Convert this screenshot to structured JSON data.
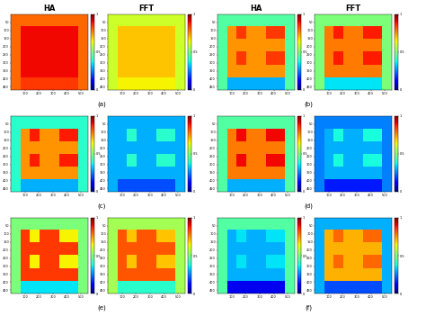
{
  "chart_data": [
    {
      "type": "heatmap",
      "title": "HA",
      "annotation": "(a)",
      "xlim": [
        0,
        550
      ],
      "ylim": [
        470,
        0
      ],
      "xticks": [
        100,
        200,
        300,
        400,
        500
      ],
      "yticks": [
        50,
        100,
        150,
        200,
        250,
        300,
        350,
        400,
        450
      ],
      "colorbar": {
        "range": [
          0,
          1
        ],
        "ticks": [
          0,
          0.5,
          1
        ]
      },
      "cells": [
        [
          0.8,
          0.8,
          0.8,
          0.8,
          0.8,
          0.8,
          0.8,
          0.8
        ],
        [
          0.8,
          0.9,
          0.9,
          0.9,
          0.9,
          0.9,
          0.9,
          0.8
        ],
        [
          0.8,
          0.9,
          0.9,
          0.9,
          0.9,
          0.9,
          0.9,
          0.8
        ],
        [
          0.8,
          0.9,
          0.9,
          0.9,
          0.9,
          0.9,
          0.9,
          0.8
        ],
        [
          0.8,
          0.9,
          0.9,
          0.9,
          0.9,
          0.9,
          0.9,
          0.8
        ],
        [
          0.8,
          0.85,
          0.85,
          0.85,
          0.85,
          0.85,
          0.85,
          0.8
        ]
      ]
    },
    {
      "type": "heatmap",
      "title": "FFT",
      "xlim": [
        0,
        550
      ],
      "ylim": [
        470,
        0
      ],
      "xticks": [
        100,
        200,
        300,
        400,
        500
      ],
      "yticks": [
        50,
        100,
        150,
        200,
        250,
        300,
        350,
        400,
        450
      ],
      "colorbar": {
        "range": [
          0,
          1
        ],
        "ticks": [
          0,
          0.5,
          1
        ]
      },
      "cells": [
        [
          0.6,
          0.6,
          0.6,
          0.6,
          0.6,
          0.6,
          0.6,
          0.6
        ],
        [
          0.6,
          0.7,
          0.7,
          0.7,
          0.7,
          0.7,
          0.7,
          0.6
        ],
        [
          0.6,
          0.7,
          0.7,
          0.7,
          0.7,
          0.7,
          0.7,
          0.6
        ],
        [
          0.6,
          0.7,
          0.7,
          0.7,
          0.7,
          0.7,
          0.7,
          0.6
        ],
        [
          0.6,
          0.7,
          0.7,
          0.7,
          0.7,
          0.7,
          0.7,
          0.6
        ],
        [
          0.6,
          0.65,
          0.65,
          0.65,
          0.65,
          0.65,
          0.65,
          0.6
        ]
      ]
    },
    {
      "type": "heatmap",
      "title": "HA",
      "annotation": "(b)",
      "xlim": [
        0,
        550
      ],
      "ylim": [
        470,
        0
      ],
      "xticks": [
        100,
        200,
        300,
        400,
        500
      ],
      "yticks": [
        50,
        100,
        150,
        200,
        250,
        300,
        350,
        400,
        450
      ],
      "colorbar": {
        "range": [
          0,
          1
        ],
        "ticks": [
          0,
          0.5,
          1
        ]
      },
      "cells": [
        [
          0.45,
          0.45,
          0.45,
          0.45,
          0.45,
          0.45,
          0.45,
          0.45
        ],
        [
          0.45,
          0.75,
          0.85,
          0.75,
          0.75,
          0.85,
          0.85,
          0.45
        ],
        [
          0.45,
          0.75,
          0.75,
          0.75,
          0.75,
          0.75,
          0.75,
          0.45
        ],
        [
          0.45,
          0.75,
          0.85,
          0.75,
          0.75,
          0.85,
          0.85,
          0.45
        ],
        [
          0.45,
          0.75,
          0.75,
          0.75,
          0.75,
          0.75,
          0.75,
          0.45
        ],
        [
          0.45,
          0.3,
          0.3,
          0.3,
          0.3,
          0.3,
          0.3,
          0.45
        ]
      ]
    },
    {
      "type": "heatmap",
      "title": "FFT",
      "xlim": [
        0,
        550
      ],
      "ylim": [
        470,
        0
      ],
      "xticks": [
        100,
        200,
        300,
        400,
        500
      ],
      "yticks": [
        50,
        100,
        150,
        200,
        250,
        300,
        350,
        400,
        450
      ],
      "colorbar": {
        "range": [
          0,
          1
        ],
        "ticks": [
          0,
          0.5,
          1
        ]
      },
      "cells": [
        [
          0.5,
          0.5,
          0.5,
          0.5,
          0.5,
          0.5,
          0.5,
          0.5
        ],
        [
          0.5,
          0.78,
          0.88,
          0.78,
          0.78,
          0.88,
          0.88,
          0.5
        ],
        [
          0.5,
          0.78,
          0.78,
          0.78,
          0.78,
          0.78,
          0.78,
          0.5
        ],
        [
          0.5,
          0.78,
          0.88,
          0.78,
          0.78,
          0.88,
          0.88,
          0.5
        ],
        [
          0.5,
          0.78,
          0.78,
          0.78,
          0.78,
          0.78,
          0.78,
          0.5
        ],
        [
          0.5,
          0.35,
          0.35,
          0.35,
          0.35,
          0.35,
          0.35,
          0.5
        ]
      ]
    },
    {
      "type": "heatmap",
      "annotation": "(c)",
      "xlim": [
        0,
        550
      ],
      "ylim": [
        470,
        0
      ],
      "xticks": [
        100,
        200,
        300,
        400,
        500
      ],
      "yticks": [
        50,
        100,
        150,
        200,
        250,
        300,
        350,
        400,
        450
      ],
      "colorbar": {
        "range": [
          0,
          1
        ],
        "ticks": [
          0,
          0.5,
          1
        ]
      },
      "cells": [
        [
          0.4,
          0.4,
          0.4,
          0.4,
          0.4,
          0.4,
          0.4,
          0.4
        ],
        [
          0.4,
          0.75,
          0.88,
          0.75,
          0.75,
          0.88,
          0.88,
          0.4
        ],
        [
          0.4,
          0.75,
          0.75,
          0.75,
          0.75,
          0.75,
          0.75,
          0.4
        ],
        [
          0.4,
          0.75,
          0.88,
          0.75,
          0.75,
          0.88,
          0.88,
          0.4
        ],
        [
          0.4,
          0.75,
          0.75,
          0.75,
          0.75,
          0.75,
          0.75,
          0.4
        ],
        [
          0.4,
          0.3,
          0.3,
          0.3,
          0.3,
          0.3,
          0.3,
          0.4
        ]
      ]
    },
    {
      "type": "heatmap",
      "xlim": [
        0,
        550
      ],
      "ylim": [
        470,
        0
      ],
      "xticks": [
        100,
        200,
        300,
        400,
        500
      ],
      "yticks": [
        50,
        100,
        150,
        200,
        250,
        300,
        350,
        400,
        450
      ],
      "colorbar": {
        "range": [
          0,
          1
        ],
        "ticks": [
          0,
          0.5,
          1
        ]
      },
      "cells": [
        [
          0.3,
          0.3,
          0.3,
          0.3,
          0.3,
          0.3,
          0.3,
          0.3
        ],
        [
          0.3,
          0.3,
          0.4,
          0.3,
          0.3,
          0.4,
          0.4,
          0.3
        ],
        [
          0.3,
          0.3,
          0.3,
          0.3,
          0.3,
          0.3,
          0.3,
          0.3
        ],
        [
          0.3,
          0.3,
          0.4,
          0.3,
          0.3,
          0.4,
          0.4,
          0.3
        ],
        [
          0.3,
          0.3,
          0.3,
          0.3,
          0.3,
          0.3,
          0.3,
          0.3
        ],
        [
          0.3,
          0.2,
          0.2,
          0.2,
          0.2,
          0.2,
          0.2,
          0.3
        ]
      ]
    },
    {
      "type": "heatmap",
      "annotation": "(d)",
      "xlim": [
        0,
        550
      ],
      "ylim": [
        470,
        0
      ],
      "xticks": [
        100,
        200,
        300,
        400,
        500
      ],
      "yticks": [
        50,
        100,
        150,
        200,
        250,
        300,
        350,
        400,
        450
      ],
      "colorbar": {
        "range": [
          0,
          1
        ],
        "ticks": [
          0,
          0.5,
          1
        ]
      },
      "cells": [
        [
          0.45,
          0.45,
          0.45,
          0.45,
          0.45,
          0.45,
          0.45,
          0.45
        ],
        [
          0.45,
          0.78,
          0.9,
          0.78,
          0.78,
          0.9,
          0.9,
          0.45
        ],
        [
          0.45,
          0.78,
          0.78,
          0.78,
          0.78,
          0.78,
          0.78,
          0.45
        ],
        [
          0.45,
          0.78,
          0.9,
          0.78,
          0.78,
          0.9,
          0.9,
          0.45
        ],
        [
          0.45,
          0.78,
          0.78,
          0.78,
          0.78,
          0.78,
          0.78,
          0.45
        ],
        [
          0.45,
          0.3,
          0.3,
          0.3,
          0.3,
          0.3,
          0.3,
          0.45
        ]
      ]
    },
    {
      "type": "heatmap",
      "xlim": [
        0,
        550
      ],
      "ylim": [
        470,
        0
      ],
      "xticks": [
        100,
        200,
        300,
        400,
        500
      ],
      "yticks": [
        50,
        100,
        150,
        200,
        250,
        300,
        350,
        400,
        450
      ],
      "colorbar": {
        "range": [
          0,
          1
        ],
        "ticks": [
          0,
          0.5,
          1
        ]
      },
      "cells": [
        [
          0.25,
          0.25,
          0.25,
          0.25,
          0.25,
          0.25,
          0.25,
          0.25
        ],
        [
          0.25,
          0.3,
          0.38,
          0.3,
          0.3,
          0.38,
          0.38,
          0.25
        ],
        [
          0.25,
          0.3,
          0.3,
          0.3,
          0.3,
          0.3,
          0.3,
          0.25
        ],
        [
          0.25,
          0.3,
          0.38,
          0.3,
          0.3,
          0.38,
          0.38,
          0.25
        ],
        [
          0.25,
          0.3,
          0.3,
          0.3,
          0.3,
          0.3,
          0.3,
          0.25
        ],
        [
          0.25,
          0.15,
          0.15,
          0.15,
          0.15,
          0.15,
          0.15,
          0.25
        ]
      ]
    },
    {
      "type": "heatmap",
      "annotation": "(e)",
      "xlim": [
        0,
        550
      ],
      "ylim": [
        470,
        0
      ],
      "xticks": [
        100,
        200,
        300,
        400,
        500
      ],
      "yticks": [
        50,
        100,
        150,
        200,
        250,
        300,
        350,
        400,
        450
      ],
      "colorbar": {
        "range": [
          0,
          1
        ],
        "ticks": [
          0,
          0.5,
          1
        ]
      },
      "cells": [
        [
          0.5,
          0.5,
          0.5,
          0.5,
          0.5,
          0.5,
          0.5,
          0.5
        ],
        [
          0.5,
          0.85,
          0.65,
          0.85,
          0.85,
          0.65,
          0.65,
          0.5
        ],
        [
          0.5,
          0.85,
          0.85,
          0.85,
          0.85,
          0.85,
          0.85,
          0.5
        ],
        [
          0.5,
          0.85,
          0.65,
          0.85,
          0.85,
          0.65,
          0.65,
          0.5
        ],
        [
          0.5,
          0.85,
          0.85,
          0.85,
          0.85,
          0.85,
          0.85,
          0.5
        ],
        [
          0.5,
          0.35,
          0.35,
          0.35,
          0.35,
          0.35,
          0.35,
          0.5
        ]
      ]
    },
    {
      "type": "heatmap",
      "xlim": [
        0,
        550
      ],
      "ylim": [
        470,
        0
      ],
      "xticks": [
        100,
        200,
        300,
        400,
        500
      ],
      "yticks": [
        50,
        100,
        150,
        200,
        250,
        300,
        350,
        400,
        450
      ],
      "colorbar": {
        "range": [
          0,
          1
        ],
        "ticks": [
          0,
          0.5,
          1
        ]
      },
      "cells": [
        [
          0.55,
          0.55,
          0.55,
          0.55,
          0.55,
          0.55,
          0.55,
          0.55
        ],
        [
          0.55,
          0.82,
          0.7,
          0.82,
          0.82,
          0.7,
          0.7,
          0.55
        ],
        [
          0.55,
          0.82,
          0.82,
          0.82,
          0.82,
          0.82,
          0.82,
          0.55
        ],
        [
          0.55,
          0.82,
          0.7,
          0.82,
          0.82,
          0.7,
          0.7,
          0.55
        ],
        [
          0.55,
          0.82,
          0.82,
          0.82,
          0.82,
          0.82,
          0.82,
          0.55
        ],
        [
          0.55,
          0.4,
          0.4,
          0.4,
          0.4,
          0.4,
          0.4,
          0.55
        ]
      ]
    },
    {
      "type": "heatmap",
      "annotation": "(f)",
      "xlim": [
        0,
        550
      ],
      "ylim": [
        470,
        0
      ],
      "xticks": [
        100,
        200,
        300,
        400,
        500
      ],
      "yticks": [
        50,
        100,
        150,
        200,
        250,
        300,
        350,
        400,
        450
      ],
      "colorbar": {
        "range": [
          0,
          1
        ],
        "ticks": [
          0,
          0.5,
          1
        ]
      },
      "cells": [
        [
          0.45,
          0.45,
          0.45,
          0.45,
          0.45,
          0.45,
          0.45,
          0.45
        ],
        [
          0.45,
          0.3,
          0.35,
          0.3,
          0.3,
          0.35,
          0.35,
          0.45
        ],
        [
          0.45,
          0.3,
          0.3,
          0.3,
          0.3,
          0.3,
          0.3,
          0.45
        ],
        [
          0.45,
          0.3,
          0.35,
          0.3,
          0.3,
          0.35,
          0.35,
          0.45
        ],
        [
          0.45,
          0.3,
          0.3,
          0.3,
          0.3,
          0.3,
          0.3,
          0.45
        ],
        [
          0.45,
          0.1,
          0.1,
          0.1,
          0.1,
          0.1,
          0.1,
          0.45
        ]
      ]
    },
    {
      "type": "heatmap",
      "xlim": [
        0,
        550
      ],
      "ylim": [
        470,
        0
      ],
      "xticks": [
        100,
        200,
        300,
        400,
        500
      ],
      "yticks": [
        50,
        100,
        150,
        200,
        250,
        300,
        350,
        400,
        450
      ],
      "colorbar": {
        "range": [
          0,
          1
        ],
        "ticks": [
          0,
          0.5,
          1
        ]
      },
      "cells": [
        [
          0.3,
          0.3,
          0.3,
          0.3,
          0.3,
          0.3,
          0.3,
          0.3
        ],
        [
          0.3,
          0.72,
          0.8,
          0.72,
          0.72,
          0.8,
          0.8,
          0.3
        ],
        [
          0.3,
          0.72,
          0.72,
          0.72,
          0.72,
          0.72,
          0.72,
          0.3
        ],
        [
          0.3,
          0.72,
          0.8,
          0.72,
          0.72,
          0.8,
          0.8,
          0.3
        ],
        [
          0.3,
          0.72,
          0.72,
          0.72,
          0.72,
          0.72,
          0.72,
          0.3
        ],
        [
          0.3,
          0.2,
          0.2,
          0.2,
          0.2,
          0.2,
          0.2,
          0.3
        ]
      ]
    }
  ]
}
